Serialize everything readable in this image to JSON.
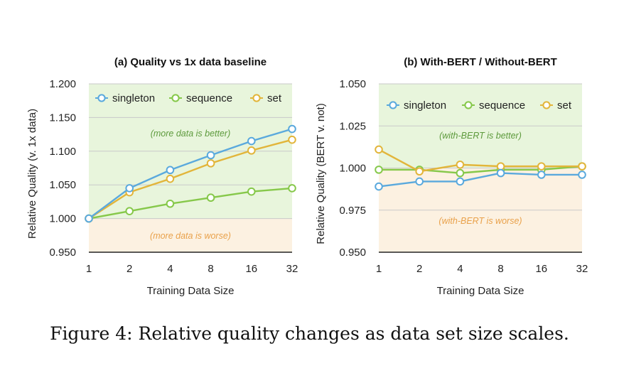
{
  "caption": "Figure 4: Relative quality changes as data set size scales.",
  "colors": {
    "singleton": "#5aa9dd",
    "sequence": "#86c84a",
    "set": "#e2b53a",
    "better_bg": "#e8f5dc",
    "worse_bg": "#fcf1e1",
    "better_text": "#5d9a3c",
    "worse_text": "#e9a14a",
    "axis": "#222222",
    "grid": "#c9c9c9"
  },
  "chart_data": [
    {
      "type": "line",
      "title": "(a) Quality vs 1x data baseline",
      "xlabel": "Training Data Size",
      "ylabel": "Relative Quality (v. 1x data)",
      "x": [
        "1",
        "2",
        "4",
        "8",
        "16",
        "32"
      ],
      "ylim": [
        0.95,
        1.2
      ],
      "yticks": [
        "0.950",
        "1.000",
        "1.050",
        "1.100",
        "1.150",
        "1.200"
      ],
      "baseline": 1.0,
      "grid": true,
      "legend_position": "top",
      "annotations": {
        "better": "(more data is better)",
        "worse": "(more data is worse)"
      },
      "series": [
        {
          "name": "singleton",
          "values": [
            1.0,
            1.045,
            1.072,
            1.094,
            1.115,
            1.133
          ]
        },
        {
          "name": "sequence",
          "values": [
            1.0,
            1.011,
            1.022,
            1.031,
            1.04,
            1.045
          ]
        },
        {
          "name": "set",
          "values": [
            1.0,
            1.039,
            1.059,
            1.082,
            1.101,
            1.117
          ]
        }
      ]
    },
    {
      "type": "line",
      "title": "(b) With-BERT / Without-BERT",
      "xlabel": "Training Data Size",
      "ylabel": "Relative Quality (BERT v. not)",
      "x": [
        "1",
        "2",
        "4",
        "8",
        "16",
        "32"
      ],
      "ylim": [
        0.95,
        1.05
      ],
      "yticks": [
        "0.950",
        "0.975",
        "1.000",
        "1.025",
        "1.050"
      ],
      "baseline": 1.0,
      "grid": true,
      "legend_position": "top",
      "annotations": {
        "better": "(with-BERT is better)",
        "worse": "(with-BERT is worse)"
      },
      "series": [
        {
          "name": "singleton",
          "values": [
            0.989,
            0.992,
            0.992,
            0.997,
            0.996,
            0.996
          ]
        },
        {
          "name": "sequence",
          "values": [
            0.999,
            0.999,
            0.997,
            0.999,
            0.999,
            1.001
          ]
        },
        {
          "name": "set",
          "values": [
            1.011,
            0.998,
            1.002,
            1.001,
            1.001,
            1.001
          ]
        }
      ]
    }
  ]
}
